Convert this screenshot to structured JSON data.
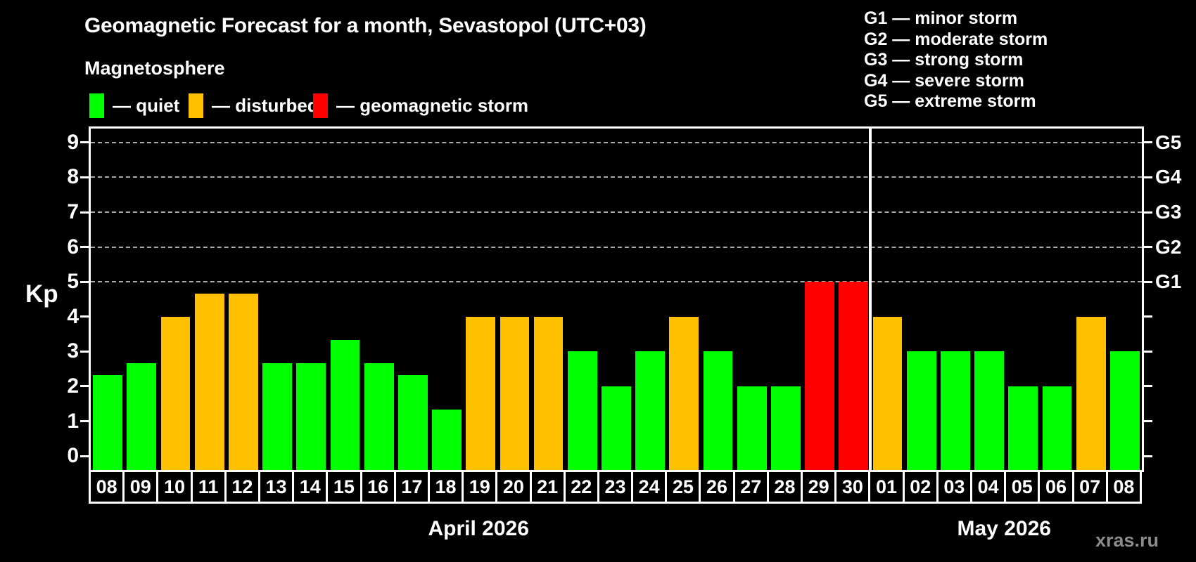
{
  "title": "Geomagnetic Forecast for a month, Sevastopol (UTC+03)",
  "subtitle": "Magnetosphere",
  "legend": {
    "items": [
      {
        "name": "quiet",
        "label": "— quiet",
        "color": "#00ff00",
        "x": 127
      },
      {
        "name": "disturbed",
        "label": "— disturbed",
        "color": "#ffc000",
        "x": 268
      },
      {
        "name": "geomagnetic-storm",
        "label": "— geomagnetic storm",
        "color": "#ff0000",
        "x": 445
      }
    ]
  },
  "g_legend": [
    "G1 — minor storm",
    "G2 — moderate storm",
    "G3 — strong storm",
    "G4 — severe storm",
    "G5 — extreme storm"
  ],
  "watermark": "xras.ru",
  "chart_data": {
    "type": "bar",
    "title": "Geomagnetic Forecast for a month, Sevastopol (UTC+03)",
    "ylabel": "Kp",
    "ylim": [
      -0.4,
      9.4
    ],
    "yticks": [
      0,
      1,
      2,
      3,
      4,
      5,
      6,
      7,
      8,
      9
    ],
    "gridlines_at_kp": [
      5,
      6,
      7,
      8,
      9
    ],
    "grid": "dashed-horizontal",
    "right_axis": [
      {
        "label": "G1",
        "kp": 5
      },
      {
        "label": "G2",
        "kp": 6
      },
      {
        "label": "G3",
        "kp": 7
      },
      {
        "label": "G4",
        "kp": 8
      },
      {
        "label": "G5",
        "kp": 9
      }
    ],
    "colors": {
      "quiet": "#00ff00",
      "disturbed": "#ffc000",
      "storm": "#ff0000"
    },
    "months": [
      {
        "label": "April 2026",
        "bars": [
          {
            "day": "08",
            "kp": 2.33,
            "status": "quiet"
          },
          {
            "day": "09",
            "kp": 2.67,
            "status": "quiet"
          },
          {
            "day": "10",
            "kp": 4.0,
            "status": "disturbed"
          },
          {
            "day": "11",
            "kp": 4.67,
            "status": "disturbed"
          },
          {
            "day": "12",
            "kp": 4.67,
            "status": "disturbed"
          },
          {
            "day": "13",
            "kp": 2.67,
            "status": "quiet"
          },
          {
            "day": "14",
            "kp": 2.67,
            "status": "quiet"
          },
          {
            "day": "15",
            "kp": 3.33,
            "status": "quiet"
          },
          {
            "day": "16",
            "kp": 2.67,
            "status": "quiet"
          },
          {
            "day": "17",
            "kp": 2.33,
            "status": "quiet"
          },
          {
            "day": "18",
            "kp": 1.33,
            "status": "quiet"
          },
          {
            "day": "19",
            "kp": 4.0,
            "status": "disturbed"
          },
          {
            "day": "20",
            "kp": 4.0,
            "status": "disturbed"
          },
          {
            "day": "21",
            "kp": 4.0,
            "status": "disturbed"
          },
          {
            "day": "22",
            "kp": 3.0,
            "status": "quiet"
          },
          {
            "day": "23",
            "kp": 2.0,
            "status": "quiet"
          },
          {
            "day": "24",
            "kp": 3.0,
            "status": "quiet"
          },
          {
            "day": "25",
            "kp": 4.0,
            "status": "disturbed"
          },
          {
            "day": "26",
            "kp": 3.0,
            "status": "quiet"
          },
          {
            "day": "27",
            "kp": 2.0,
            "status": "quiet"
          },
          {
            "day": "28",
            "kp": 2.0,
            "status": "quiet"
          },
          {
            "day": "29",
            "kp": 5.0,
            "status": "storm"
          },
          {
            "day": "30",
            "kp": 5.0,
            "status": "storm"
          }
        ]
      },
      {
        "label": "May 2026",
        "bars": [
          {
            "day": "01",
            "kp": 4.0,
            "status": "disturbed"
          },
          {
            "day": "02",
            "kp": 3.0,
            "status": "quiet"
          },
          {
            "day": "03",
            "kp": 3.0,
            "status": "quiet"
          },
          {
            "day": "04",
            "kp": 3.0,
            "status": "quiet"
          },
          {
            "day": "05",
            "kp": 2.0,
            "status": "quiet"
          },
          {
            "day": "06",
            "kp": 2.0,
            "status": "quiet"
          },
          {
            "day": "07",
            "kp": 4.0,
            "status": "disturbed"
          },
          {
            "day": "08",
            "kp": 3.0,
            "status": "quiet"
          }
        ]
      }
    ]
  }
}
